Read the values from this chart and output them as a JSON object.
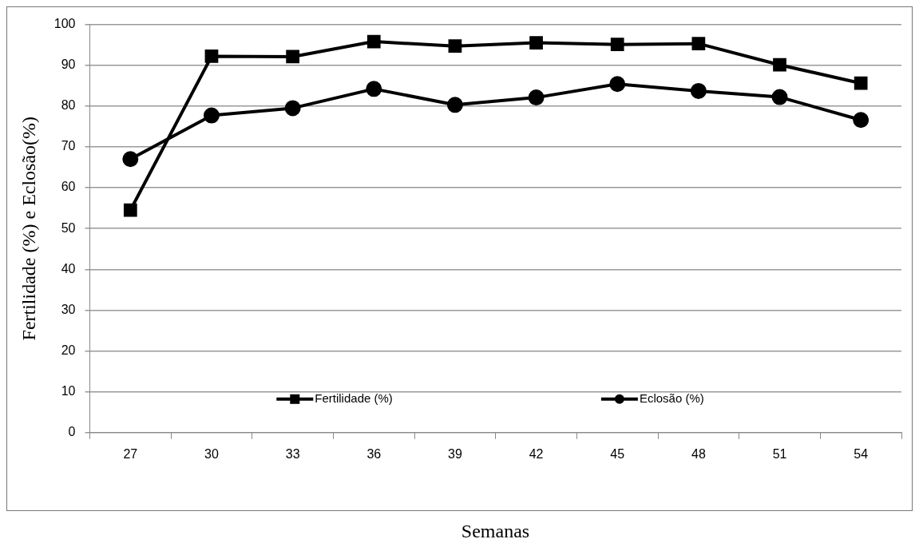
{
  "chart_data": {
    "type": "line",
    "xlabel": "Semanas",
    "ylabel": "Fertilidade (%) e Eclosão(%)",
    "categories": [
      "27",
      "30",
      "33",
      "36",
      "39",
      "42",
      "45",
      "48",
      "51",
      "54"
    ],
    "series": [
      {
        "name": "Fertilidade (%)",
        "color": "#000000",
        "marker": "square",
        "values": [
          54.5,
          92.2,
          92.1,
          95.8,
          94.7,
          95.5,
          95.1,
          95.3,
          90.1,
          85.6
        ]
      },
      {
        "name": "Eclosão (%)",
        "color": "#000000",
        "marker": "circle",
        "values": [
          67.0,
          77.7,
          79.5,
          84.2,
          80.3,
          82.1,
          85.4,
          83.7,
          82.2,
          76.6
        ]
      }
    ],
    "ylim": [
      0,
      100
    ],
    "yticks": [
      0,
      10,
      20,
      30,
      40,
      50,
      60,
      70,
      80,
      90,
      100
    ],
    "grid": "y",
    "legend": "bottom",
    "line_style": "solid"
  }
}
